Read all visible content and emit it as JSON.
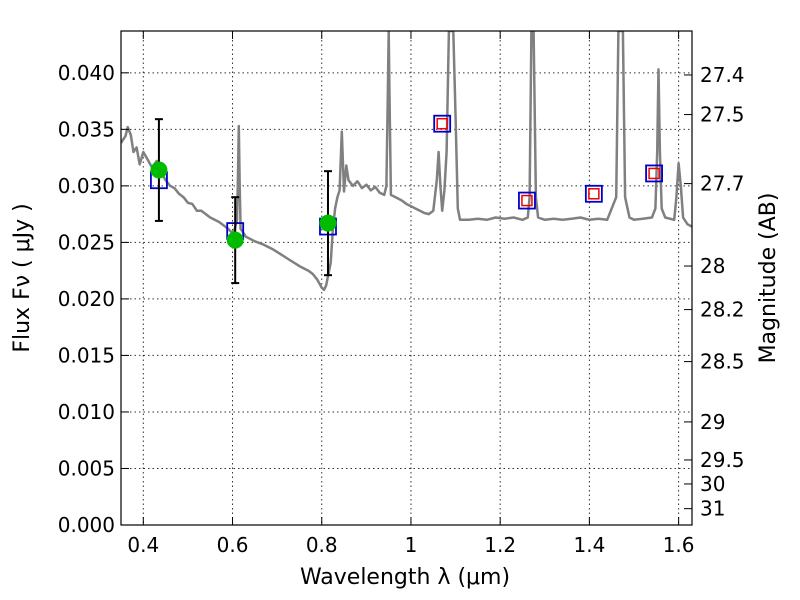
{
  "chart_data": {
    "type": "scatter",
    "title": "",
    "xlabel": "Wavelength  λ (μm)",
    "ylabel": "Flux  Fν  ( μJy )",
    "ylabel_right": "Magnitude (AB)",
    "xlim": [
      0.35,
      1.63
    ],
    "ylim": [
      0.0,
      0.0437
    ],
    "grid": true,
    "x_ticks": [
      {
        "value": 0.4,
        "label": "0.4"
      },
      {
        "value": 0.6,
        "label": "0.6"
      },
      {
        "value": 0.8,
        "label": "0.8"
      },
      {
        "value": 1.0,
        "label": "1"
      },
      {
        "value": 1.2,
        "label": "1.2"
      },
      {
        "value": 1.4,
        "label": "1.4"
      },
      {
        "value": 1.6,
        "label": "1.6"
      }
    ],
    "y_ticks": [
      {
        "value": 0.0,
        "label": "0.000"
      },
      {
        "value": 0.005,
        "label": "0.005"
      },
      {
        "value": 0.01,
        "label": "0.010"
      },
      {
        "value": 0.015,
        "label": "0.015"
      },
      {
        "value": 0.02,
        "label": "0.020"
      },
      {
        "value": 0.025,
        "label": "0.025"
      },
      {
        "value": 0.03,
        "label": "0.030"
      },
      {
        "value": 0.035,
        "label": "0.035"
      },
      {
        "value": 0.04,
        "label": "0.040"
      }
    ],
    "mag_ticks": [
      {
        "value": 27.4,
        "label": "27.4"
      },
      {
        "value": 27.5,
        "label": "27.5"
      },
      {
        "value": 27.7,
        "label": "27.7"
      },
      {
        "value": 28.0,
        "label": "28"
      },
      {
        "value": 28.2,
        "label": "28.2"
      },
      {
        "value": 28.5,
        "label": "28.5"
      },
      {
        "value": 29.0,
        "label": "29"
      },
      {
        "value": 29.5,
        "label": "29.5"
      },
      {
        "value": 30.0,
        "label": "30"
      },
      {
        "value": 31.0,
        "label": "31"
      }
    ],
    "colors": {
      "spectrum": "#808080",
      "observed": "#00bb00",
      "errorbar": "#000000",
      "model_box": "#0000cc",
      "model_inner": "#ee0000"
    },
    "spectrum": [
      [
        0.35,
        0.0338
      ],
      [
        0.36,
        0.0344
      ],
      [
        0.365,
        0.0352
      ],
      [
        0.372,
        0.0345
      ],
      [
        0.378,
        0.033
      ],
      [
        0.385,
        0.0334
      ],
      [
        0.392,
        0.0319
      ],
      [
        0.4,
        0.033
      ],
      [
        0.41,
        0.0323
      ],
      [
        0.42,
        0.0316
      ],
      [
        0.43,
        0.0322
      ],
      [
        0.44,
        0.0312
      ],
      [
        0.45,
        0.0305
      ],
      [
        0.46,
        0.03
      ],
      [
        0.47,
        0.0298
      ],
      [
        0.48,
        0.0293
      ],
      [
        0.49,
        0.029
      ],
      [
        0.5,
        0.0285
      ],
      [
        0.51,
        0.0284
      ],
      [
        0.52,
        0.0278
      ],
      [
        0.53,
        0.0278
      ],
      [
        0.54,
        0.0275
      ],
      [
        0.55,
        0.0272
      ],
      [
        0.56,
        0.027
      ],
      [
        0.57,
        0.0268
      ],
      [
        0.58,
        0.0265
      ],
      [
        0.59,
        0.0262
      ],
      [
        0.6,
        0.0258
      ],
      [
        0.605,
        0.0262
      ],
      [
        0.61,
        0.027
      ],
      [
        0.612,
        0.0305
      ],
      [
        0.614,
        0.0353
      ],
      [
        0.616,
        0.03
      ],
      [
        0.618,
        0.0262
      ],
      [
        0.63,
        0.0255
      ],
      [
        0.65,
        0.0251
      ],
      [
        0.67,
        0.0248
      ],
      [
        0.69,
        0.0244
      ],
      [
        0.71,
        0.0239
      ],
      [
        0.73,
        0.0234
      ],
      [
        0.75,
        0.0229
      ],
      [
        0.77,
        0.0225
      ],
      [
        0.78,
        0.0222
      ],
      [
        0.79,
        0.0217
      ],
      [
        0.8,
        0.021
      ],
      [
        0.805,
        0.0208
      ],
      [
        0.81,
        0.0212
      ],
      [
        0.815,
        0.0222
      ],
      [
        0.82,
        0.0232
      ],
      [
        0.825,
        0.0262
      ],
      [
        0.83,
        0.028
      ],
      [
        0.835,
        0.029
      ],
      [
        0.84,
        0.0296
      ],
      [
        0.845,
        0.0348
      ],
      [
        0.85,
        0.0295
      ],
      [
        0.855,
        0.0318
      ],
      [
        0.86,
        0.0305
      ],
      [
        0.87,
        0.03
      ],
      [
        0.88,
        0.0304
      ],
      [
        0.89,
        0.0298
      ],
      [
        0.9,
        0.0301
      ],
      [
        0.91,
        0.0296
      ],
      [
        0.92,
        0.0299
      ],
      [
        0.93,
        0.0294
      ],
      [
        0.94,
        0.0292
      ],
      [
        0.945,
        0.03
      ],
      [
        0.948,
        0.038
      ],
      [
        0.95,
        0.0437
      ],
      [
        0.952,
        0.038
      ],
      [
        0.955,
        0.0292
      ],
      [
        0.96,
        0.0291
      ],
      [
        0.97,
        0.0289
      ],
      [
        0.98,
        0.0287
      ],
      [
        0.99,
        0.0284
      ],
      [
        1.0,
        0.0282
      ],
      [
        1.01,
        0.028
      ],
      [
        1.02,
        0.0278
      ],
      [
        1.03,
        0.0276
      ],
      [
        1.04,
        0.0275
      ],
      [
        1.05,
        0.0278
      ],
      [
        1.058,
        0.0305
      ],
      [
        1.062,
        0.033
      ],
      [
        1.066,
        0.03
      ],
      [
        1.07,
        0.0278
      ],
      [
        1.075,
        0.0296
      ],
      [
        1.08,
        0.033
      ],
      [
        1.085,
        0.0437
      ],
      [
        1.095,
        0.0437
      ],
      [
        1.1,
        0.036
      ],
      [
        1.105,
        0.028
      ],
      [
        1.11,
        0.027
      ],
      [
        1.13,
        0.027
      ],
      [
        1.15,
        0.0271
      ],
      [
        1.17,
        0.027
      ],
      [
        1.19,
        0.0272
      ],
      [
        1.21,
        0.0271
      ],
      [
        1.23,
        0.0272
      ],
      [
        1.25,
        0.027
      ],
      [
        1.262,
        0.0272
      ],
      [
        1.266,
        0.029
      ],
      [
        1.27,
        0.0437
      ],
      [
        1.275,
        0.0437
      ],
      [
        1.28,
        0.029
      ],
      [
        1.285,
        0.0272
      ],
      [
        1.3,
        0.027
      ],
      [
        1.32,
        0.0271
      ],
      [
        1.34,
        0.027
      ],
      [
        1.36,
        0.0271
      ],
      [
        1.38,
        0.0272
      ],
      [
        1.4,
        0.027
      ],
      [
        1.42,
        0.0271
      ],
      [
        1.44,
        0.027
      ],
      [
        1.46,
        0.029
      ],
      [
        1.465,
        0.0437
      ],
      [
        1.475,
        0.0437
      ],
      [
        1.48,
        0.029
      ],
      [
        1.49,
        0.0272
      ],
      [
        1.5,
        0.027
      ],
      [
        1.52,
        0.0271
      ],
      [
        1.54,
        0.0272
      ],
      [
        1.548,
        0.028
      ],
      [
        1.552,
        0.033
      ],
      [
        1.555,
        0.0403
      ],
      [
        1.558,
        0.033
      ],
      [
        1.562,
        0.028
      ],
      [
        1.57,
        0.0272
      ],
      [
        1.59,
        0.027
      ],
      [
        1.595,
        0.029
      ],
      [
        1.6,
        0.032
      ],
      [
        1.605,
        0.03
      ],
      [
        1.61,
        0.0272
      ],
      [
        1.62,
        0.0266
      ],
      [
        1.63,
        0.0264
      ]
    ],
    "observed": [
      {
        "x": 0.435,
        "y": 0.0314,
        "err": 0.0045
      },
      {
        "x": 0.606,
        "y": 0.0252,
        "err": 0.0038
      },
      {
        "x": 0.814,
        "y": 0.0267,
        "err": 0.0046
      }
    ],
    "model_photometry": [
      {
        "x": 0.435,
        "y": 0.0305
      },
      {
        "x": 0.606,
        "y": 0.026
      },
      {
        "x": 0.814,
        "y": 0.0264
      },
      {
        "x": 1.07,
        "y": 0.0355
      },
      {
        "x": 1.26,
        "y": 0.0287
      },
      {
        "x": 1.41,
        "y": 0.0293
      },
      {
        "x": 1.545,
        "y": 0.0311
      }
    ]
  }
}
